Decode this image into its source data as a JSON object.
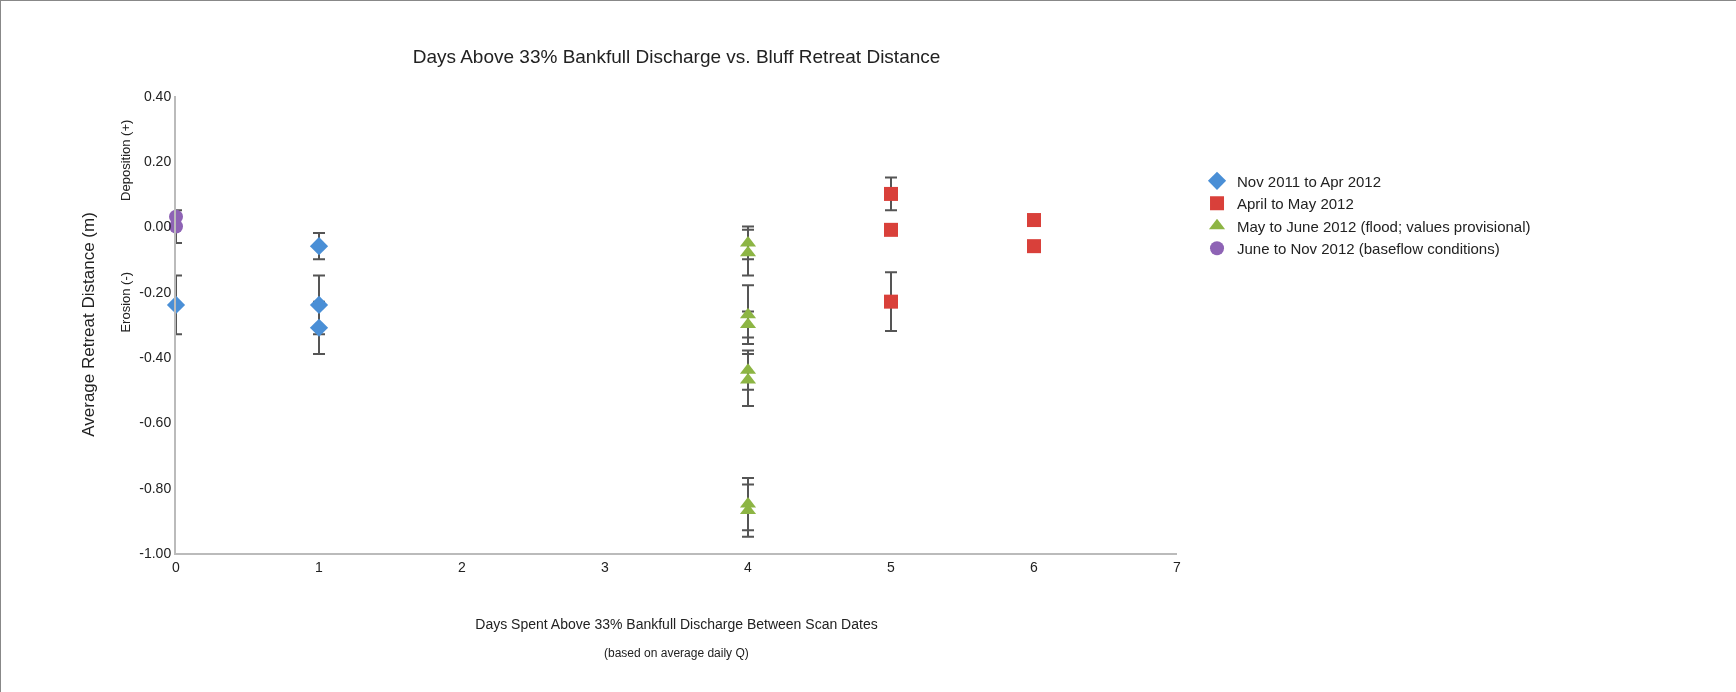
{
  "chart_data": {
    "type": "scatter",
    "title": "Days Above 33% Bankfull Discharge vs. Bluff Retreat Distance",
    "xlabel": "Days Spent Above 33% Bankfull Discharge Between Scan Dates",
    "ylabel": "Average Retreat Distance (m)",
    "annotations": [
      "(based on average daily Q)",
      "Deposition (+)",
      "Erosion (-)"
    ],
    "xlim": [
      0,
      7
    ],
    "xticks": [
      0,
      1,
      2,
      3,
      4,
      5,
      6,
      7
    ],
    "ylim": [
      -1,
      0.4
    ],
    "yticks": [
      {
        "value": 0.4,
        "label": "0.40"
      },
      {
        "value": 0.2,
        "label": "0.20"
      },
      {
        "value": 0,
        "label": "0.00"
      },
      {
        "value": -0.2,
        "label": "-0.20"
      },
      {
        "value": -0.4,
        "label": "-0.40"
      },
      {
        "value": -0.6,
        "label": "-0.60"
      },
      {
        "value": -0.8,
        "label": "-0.80"
      },
      {
        "value": -1,
        "label": "-1.00"
      }
    ],
    "grid": false,
    "legend": "right",
    "series": [
      {
        "name": "Nov 2011 to Apr 2012",
        "color": "#4a8fd6",
        "marker": "diamond",
        "x": [
          0,
          1,
          1,
          1
        ],
        "values": [
          -0.24,
          -0.06,
          -0.24,
          -0.31
        ],
        "errors": [
          0.09,
          0.04,
          0.09,
          0.08
        ]
      },
      {
        "name": "April to May 2012",
        "color": "#d9403a",
        "marker": "square",
        "x": [
          5,
          5,
          5,
          6,
          6
        ],
        "values": [
          0.1,
          -0.01,
          -0.23,
          0.02,
          -0.06
        ],
        "errors": [
          0.05,
          null,
          0.09,
          null,
          null
        ]
      },
      {
        "name": "May to June 2012 (flood; values provisional)",
        "color": "#8db544",
        "marker": "triangle",
        "x": [
          4,
          4,
          4,
          4,
          4,
          4,
          4,
          4
        ],
        "values": [
          -0.05,
          -0.08,
          -0.27,
          -0.3,
          -0.44,
          -0.47,
          -0.85,
          -0.87
        ],
        "errors": [
          0.05,
          0.07,
          0.09,
          0.04,
          0.06,
          0.08,
          0.08,
          0.08
        ]
      },
      {
        "name": "June to Nov 2012 (baseflow conditions)",
        "color": "#8e63b5",
        "marker": "circle",
        "x": [
          0,
          0
        ],
        "values": [
          0,
          0.03
        ],
        "errors": [
          0.05,
          null
        ]
      }
    ]
  }
}
